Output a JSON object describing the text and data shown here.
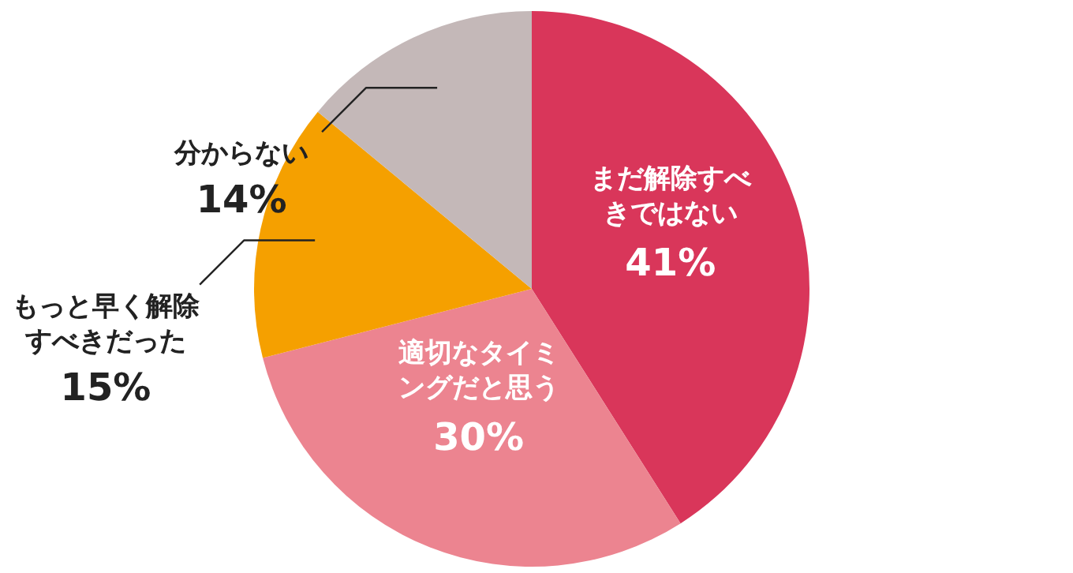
{
  "chart_data": {
    "type": "pie",
    "categories": [
      "まだ解除すべきではない",
      "適切なタイミングだと思う",
      "もっと早く解除すべきだった",
      "分からない"
    ],
    "values": [
      41,
      30,
      15,
      14
    ],
    "colors": [
      "#d9365a",
      "#ec8490",
      "#f5a000",
      "#c4b8b8"
    ],
    "value_labels": [
      "41%",
      "30%",
      "15%",
      "14%"
    ]
  }
}
